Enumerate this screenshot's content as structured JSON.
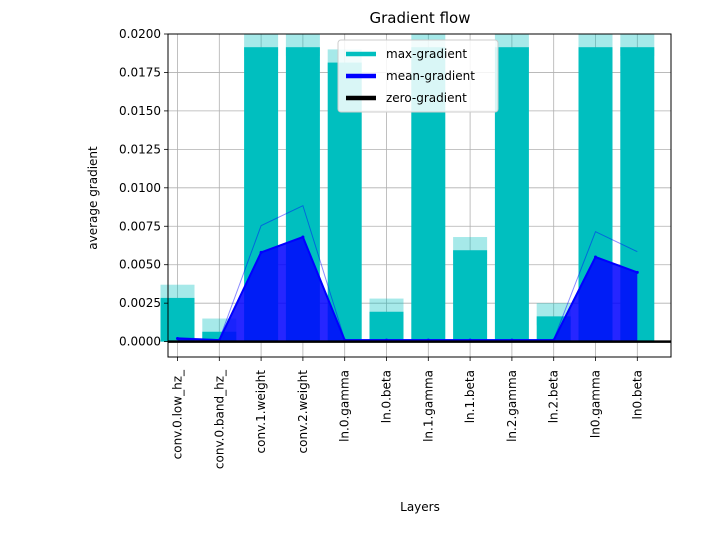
{
  "chart_data": {
    "type": "bar",
    "title": "Gradient flow",
    "xlabel": "Layers",
    "ylabel": "average gradient",
    "ylim": [
      -0.001,
      0.02
    ],
    "yticks": [
      0.0,
      0.0025,
      0.005,
      0.0075,
      0.01,
      0.0125,
      0.015,
      0.0175,
      0.02
    ],
    "ytick_labels": [
      "0.0000",
      "0.0025",
      "0.0050",
      "0.0075",
      "0.0100",
      "0.0125",
      "0.0150",
      "0.0175",
      "0.0200"
    ],
    "grid": true,
    "legend_position": "upper center",
    "categories": [
      "conv.0.low_hz_",
      "conv.0.band_hz_",
      "conv.1.weight",
      "conv.2.weight",
      "ln.0.gamma",
      "ln.0.beta",
      "ln.1.gamma",
      "ln.1.beta",
      "ln.2.gamma",
      "ln.2.beta",
      "ln0.gamma",
      "ln0.beta"
    ],
    "series": [
      {
        "name": "max-gradient",
        "type": "bar",
        "color": "#00bfbf",
        "values": [
          0.0037,
          0.0015,
          0.02,
          0.02,
          0.019,
          0.0028,
          0.02,
          0.0068,
          0.02,
          0.0025,
          0.02,
          0.02
        ]
      },
      {
        "name": "mean-gradient",
        "type": "line",
        "color": "#0000ff",
        "values": [
          0.0002,
          0.0001,
          0.0058,
          0.0068,
          0.0001,
          0.0001,
          0.0001,
          0.0001,
          0.0001,
          0.0001,
          0.0055,
          0.0045
        ]
      },
      {
        "name": "zero-gradient",
        "type": "hline",
        "color": "#000000",
        "values": [
          0,
          0,
          0,
          0,
          0,
          0,
          0,
          0,
          0,
          0,
          0,
          0
        ]
      }
    ]
  }
}
